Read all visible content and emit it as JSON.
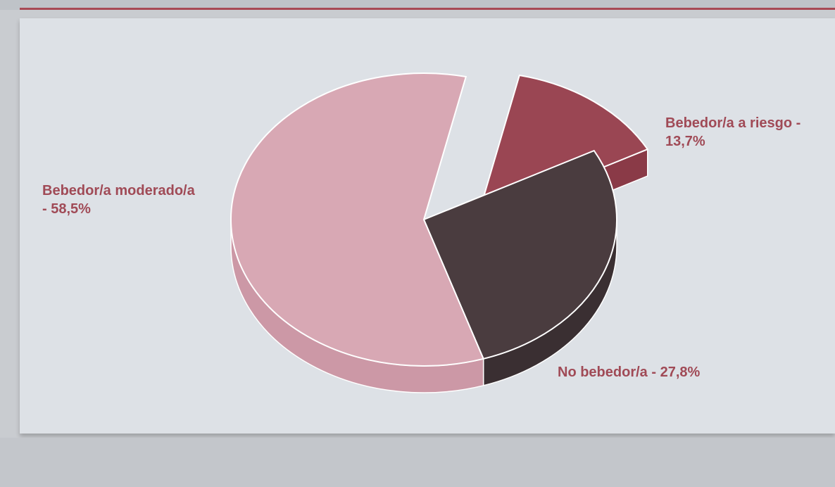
{
  "chart_data": {
    "type": "pie",
    "title": "",
    "slices": [
      {
        "label": "Bebedor/a moderado/a",
        "value": 58.5,
        "display": "Bebedor/a moderado/a - 58,5%",
        "display_lines": [
          "Bebedor/a moderado/a",
          "- 58,5%"
        ],
        "color": "#d8a8b4",
        "side_color": "#cc98a6"
      },
      {
        "label": "Bebedor/a a riesgo",
        "value": 13.7,
        "display": "Bebedor/a a riesgo - 13,7%",
        "display_lines": [
          "Bebedor/a a riesgo -",
          "13,7%"
        ],
        "color": "#9a4653",
        "side_color": "#8a3a47",
        "exploded": true
      },
      {
        "label": "No bebedor/a",
        "value": 27.8,
        "display": "No bebedor/a - 27,8%",
        "display_lines": [
          "No bebedor/a - 27,8%"
        ],
        "color": "#4a3c3f",
        "side_color": "#3a2f32"
      }
    ],
    "legend": "none",
    "style": "3d-pie"
  },
  "colors": {
    "panel_background": "#dde1e6",
    "page_background": "#c9ccd0",
    "label_text": "#a04a56",
    "accent_rule": "#a84a55"
  }
}
